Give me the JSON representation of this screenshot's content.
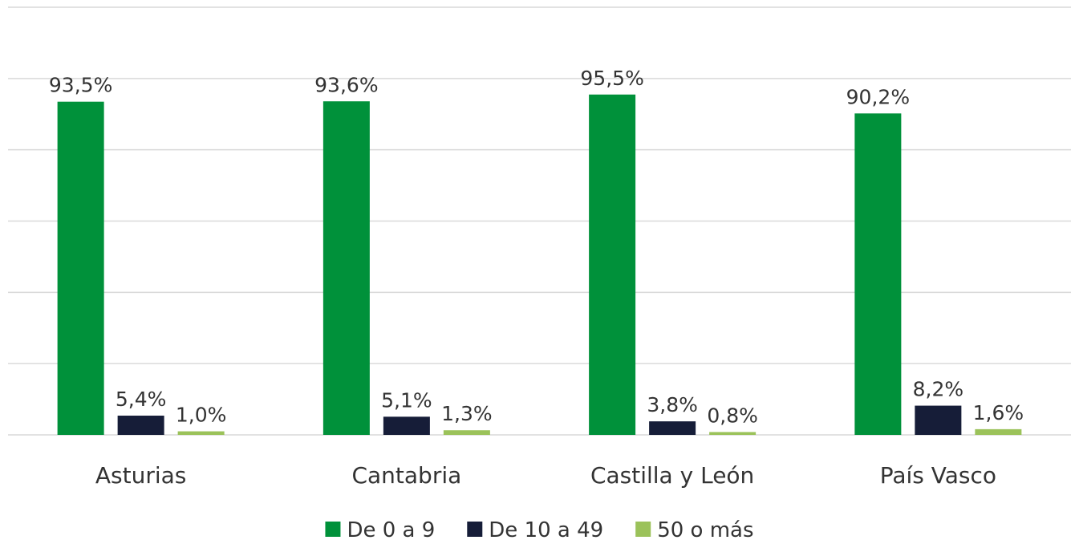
{
  "chart_data": {
    "type": "bar",
    "categories": [
      "Asturias",
      "Cantabria",
      "Castilla y León",
      "País Vasco"
    ],
    "series": [
      {
        "name": "De 0 a 9",
        "color": "#00913a",
        "values": [
          93.5,
          93.6,
          95.5,
          90.2
        ],
        "value_labels": [
          "93,5%",
          "93,6%",
          "95,5%",
          "90,2%"
        ]
      },
      {
        "name": "De 10 a 49",
        "color": "#161d38",
        "values": [
          5.4,
          5.1,
          3.8,
          8.2
        ],
        "value_labels": [
          "5,4%",
          "5,1%",
          "3,8%",
          "8,2%"
        ]
      },
      {
        "name": "50 o más",
        "color": "#9bc25a",
        "values": [
          1.0,
          1.3,
          0.8,
          1.6
        ],
        "value_labels": [
          "1,0%",
          "1,3%",
          "0,8%",
          "1,6%"
        ]
      }
    ],
    "ylim": [
      0,
      120
    ],
    "yticks": [
      0,
      20,
      40,
      60,
      80,
      100,
      120
    ],
    "grid": true,
    "legend": "bottom"
  }
}
